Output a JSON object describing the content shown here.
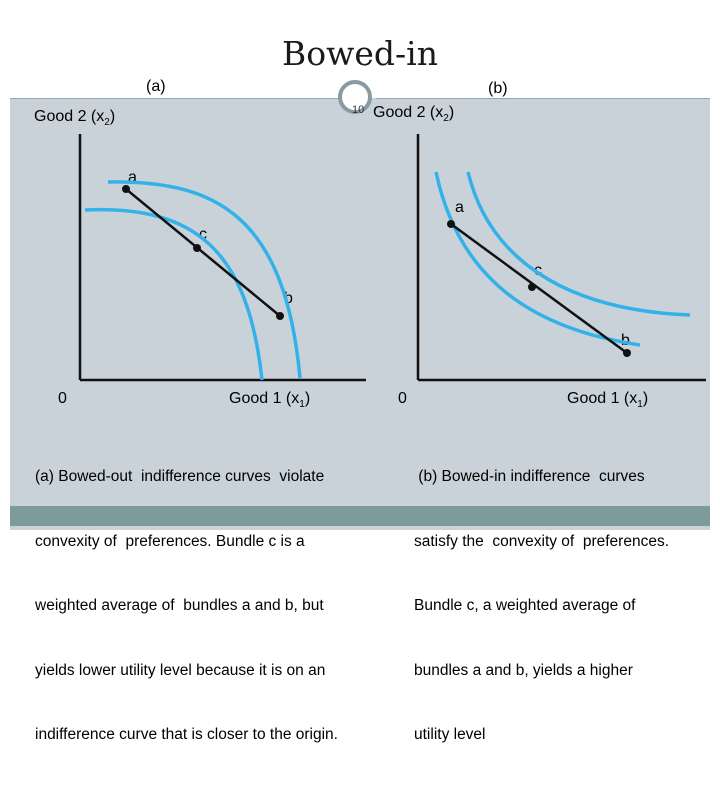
{
  "slide": {
    "title": "Bowed-in",
    "page_number": "10"
  },
  "panel_a": {
    "label": "(a)",
    "y_axis_label": "Good 2 (x",
    "y_axis_sub": "2",
    "x_axis_label": "Good 1 (x",
    "x_axis_sub": "1",
    "origin": "0",
    "point_a": "a",
    "point_b": "b",
    "point_c": "c",
    "description_lines": [
      "(a) Bowed-out  indifference curves  violate",
      "convexity of  preferences. Bundle c is a",
      "weighted average of  bundles a and b, but",
      "yields lower utility level because it is on an",
      "indifference curve that is closer to the origin."
    ]
  },
  "panel_b": {
    "label": "(b)",
    "y_axis_label": "Good 2 (x",
    "y_axis_sub": "2",
    "x_axis_label": "Good 1 (x",
    "x_axis_sub": "1",
    "origin": "0",
    "point_a": "a",
    "point_b": "b",
    "point_c": "c",
    "description_lines": [
      " (b) Bowed-in indifference  curves",
      "satisfy the  convexity of  preferences.",
      "Bundle c, a weighted average of",
      "bundles a and b, yields a higher",
      "utility level"
    ]
  },
  "colors": {
    "curve": "#33b2ea",
    "line": "#111111",
    "panel_bg": "#c9d2d9",
    "accent_strip": "#7d9b9a"
  }
}
